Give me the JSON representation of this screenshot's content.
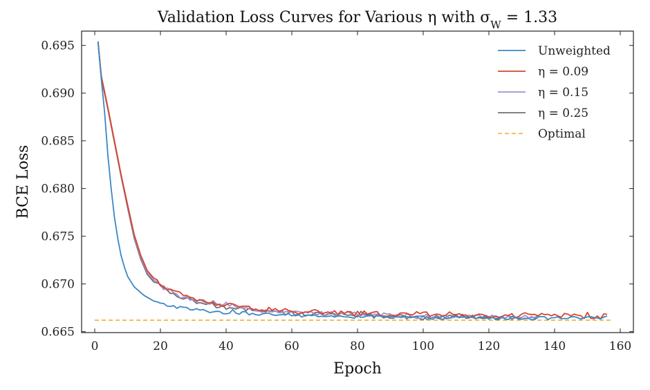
{
  "chart_data": {
    "type": "line",
    "title": "Validation Loss Curves for Various η with σ_W = 1.33",
    "xlabel": "Epoch",
    "ylabel": "BCE Loss",
    "xlim": [
      -4,
      164
    ],
    "ylim": [
      0.6649,
      0.6965
    ],
    "xticks": [
      0,
      20,
      40,
      60,
      80,
      100,
      120,
      140,
      160
    ],
    "yticks": [
      0.665,
      0.67,
      0.675,
      0.68,
      0.685,
      0.69,
      0.695
    ],
    "ytick_labels": [
      "0.665",
      "0.670",
      "0.675",
      "0.680",
      "0.685",
      "0.690",
      "0.695"
    ],
    "legend_position": "top-right",
    "optimal": {
      "name": "Optimal",
      "value": 0.6662,
      "x_range": [
        0,
        157
      ],
      "color": "#f0b94a",
      "dashed": true
    },
    "series": [
      {
        "name": "Unweighted",
        "color": "#3a87c3",
        "epochs": [
          1,
          156
        ],
        "anchors": [
          [
            1,
            0.6954
          ],
          [
            2,
            0.6915
          ],
          [
            3,
            0.688
          ],
          [
            4,
            0.6835
          ],
          [
            5,
            0.68
          ],
          [
            6,
            0.677
          ],
          [
            7,
            0.6748
          ],
          [
            8,
            0.673
          ],
          [
            9,
            0.6718
          ],
          [
            10,
            0.6708
          ],
          [
            12,
            0.6697
          ],
          [
            15,
            0.6688
          ],
          [
            18,
            0.6682
          ],
          [
            20,
            0.6679
          ],
          [
            25,
            0.6676
          ],
          [
            30,
            0.6673
          ],
          [
            40,
            0.667
          ],
          [
            60,
            0.6667
          ],
          [
            90,
            0.6665
          ],
          [
            140,
            0.6664
          ],
          [
            156,
            0.6664
          ]
        ],
        "noise": 0.00018
      },
      {
        "name": "η = 0.09",
        "color": "#d9432e",
        "epochs": [
          1,
          156
        ],
        "anchors": [
          [
            1,
            0.6954
          ],
          [
            2,
            0.6918
          ],
          [
            4,
            0.6885
          ],
          [
            6,
            0.685
          ],
          [
            8,
            0.6815
          ],
          [
            10,
            0.6783
          ],
          [
            12,
            0.6752
          ],
          [
            14,
            0.673
          ],
          [
            16,
            0.6714
          ],
          [
            18,
            0.6706
          ],
          [
            20,
            0.67
          ],
          [
            24,
            0.6692
          ],
          [
            28,
            0.6686
          ],
          [
            35,
            0.668
          ],
          [
            45,
            0.6675
          ],
          [
            60,
            0.6671
          ],
          [
            80,
            0.6669
          ],
          [
            100,
            0.6668
          ],
          [
            130,
            0.6667
          ],
          [
            156,
            0.6666
          ]
        ],
        "noise": 0.00028
      },
      {
        "name": "η = 0.15",
        "color": "#9e90d6",
        "epochs": [
          1,
          135
        ],
        "anchors": [
          [
            1,
            0.6954
          ],
          [
            2,
            0.6917
          ],
          [
            4,
            0.6884
          ],
          [
            6,
            0.6849
          ],
          [
            8,
            0.6814
          ],
          [
            10,
            0.6782
          ],
          [
            12,
            0.675
          ],
          [
            14,
            0.6728
          ],
          [
            16,
            0.6712
          ],
          [
            18,
            0.6704
          ],
          [
            20,
            0.6698
          ],
          [
            24,
            0.669
          ],
          [
            28,
            0.6685
          ],
          [
            35,
            0.6679
          ],
          [
            45,
            0.6674
          ],
          [
            60,
            0.667
          ],
          [
            80,
            0.6668
          ],
          [
            100,
            0.6666
          ],
          [
            135,
            0.6665
          ]
        ],
        "noise": 0.00024
      },
      {
        "name": "η = 0.25",
        "color": "#6f6f6f",
        "epochs": [
          1,
          135
        ],
        "anchors": [
          [
            1,
            0.6954
          ],
          [
            2,
            0.6916
          ],
          [
            4,
            0.6883
          ],
          [
            6,
            0.6848
          ],
          [
            8,
            0.6813
          ],
          [
            10,
            0.678
          ],
          [
            12,
            0.6748
          ],
          [
            14,
            0.6726
          ],
          [
            16,
            0.671
          ],
          [
            18,
            0.6702
          ],
          [
            20,
            0.6697
          ],
          [
            24,
            0.6689
          ],
          [
            28,
            0.6684
          ],
          [
            35,
            0.6678
          ],
          [
            45,
            0.6673
          ],
          [
            60,
            0.6669
          ],
          [
            80,
            0.6667
          ],
          [
            100,
            0.6665
          ],
          [
            135,
            0.6665
          ]
        ],
        "noise": 0.00024
      }
    ]
  }
}
